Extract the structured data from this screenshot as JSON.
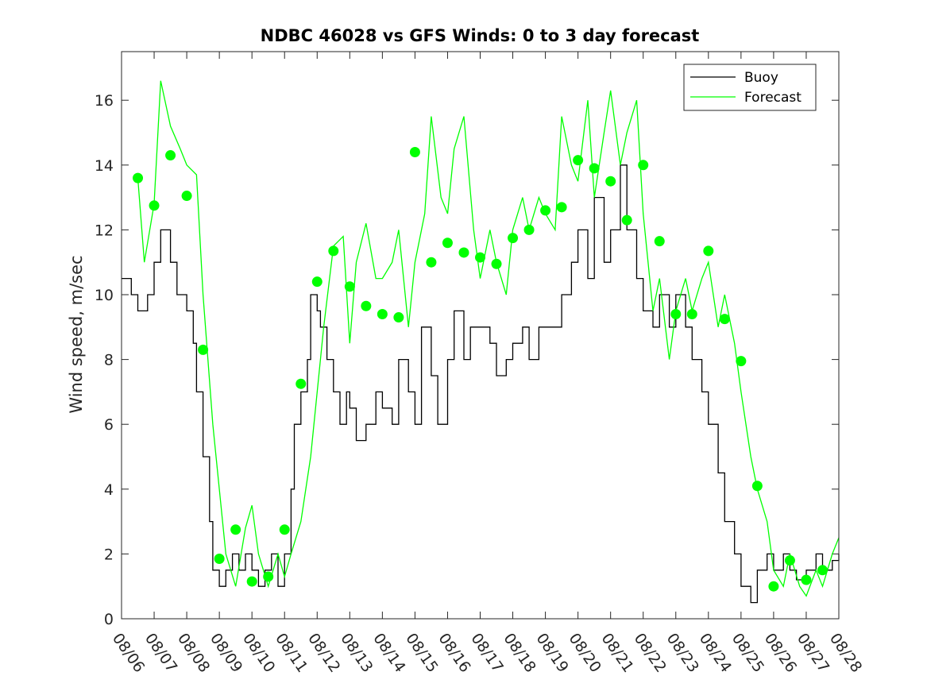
{
  "chart_data": {
    "type": "line",
    "title": "NDBC 46028 vs GFS Winds: 0 to 3 day forecast",
    "ylabel": "Wind speed, m/sec",
    "xlabel": "",
    "ylim": [
      0,
      17.5
    ],
    "yticks": [
      0,
      2,
      4,
      6,
      8,
      10,
      12,
      14,
      16
    ],
    "xlim_days": [
      0,
      22
    ],
    "xticks": [
      "08/06",
      "08/07",
      "08/08",
      "08/09",
      "08/10",
      "08/11",
      "08/12",
      "08/13",
      "08/14",
      "08/15",
      "08/16",
      "08/17",
      "08/18",
      "08/19",
      "08/20",
      "08/21",
      "08/22",
      "08/23",
      "08/24",
      "08/25",
      "08/26",
      "08/27",
      "08/28"
    ],
    "legend_position": "top-right",
    "colors": {
      "buoy": "#000000",
      "forecast": "#00ff00",
      "axis": "#262626"
    },
    "series": [
      {
        "name": "Buoy",
        "style": "step",
        "x": [
          0,
          0.3,
          0.5,
          0.8,
          1.0,
          1.2,
          1.5,
          1.7,
          2.0,
          2.2,
          2.3,
          2.5,
          2.7,
          2.8,
          3.0,
          3.2,
          3.4,
          3.6,
          3.8,
          4.0,
          4.2,
          4.4,
          4.6,
          4.8,
          5.0,
          5.2,
          5.3,
          5.5,
          5.7,
          5.8,
          6.0,
          6.1,
          6.3,
          6.5,
          6.7,
          6.9,
          7.0,
          7.2,
          7.5,
          7.8,
          8.0,
          8.3,
          8.5,
          8.8,
          9.0,
          9.2,
          9.5,
          9.7,
          10.0,
          10.2,
          10.5,
          10.7,
          11.0,
          11.3,
          11.5,
          11.8,
          12.0,
          12.3,
          12.5,
          12.8,
          13.0,
          13.3,
          13.5,
          13.8,
          14.0,
          14.3,
          14.5,
          14.8,
          15.0,
          15.3,
          15.5,
          15.8,
          16.0,
          16.3,
          16.5,
          16.8,
          17.0,
          17.3,
          17.5,
          17.8,
          18.0,
          18.3,
          18.5,
          18.8,
          19.0,
          19.3,
          19.5,
          19.8,
          20.0,
          20.3,
          20.5,
          20.7,
          21.0,
          21.3,
          21.5,
          21.8,
          22.0
        ],
        "values": [
          10.5,
          10,
          9.5,
          10,
          11,
          12,
          11,
          10,
          9.5,
          8.5,
          7,
          5,
          3,
          1.5,
          1,
          1.5,
          2,
          1.5,
          2,
          1.5,
          1,
          1.5,
          2,
          1,
          2,
          4,
          6,
          7,
          8,
          10,
          9.5,
          9,
          8,
          7,
          6,
          7,
          6.5,
          5.5,
          6,
          7,
          6.5,
          6,
          8,
          7,
          6,
          9,
          7.5,
          6,
          8,
          9.5,
          8,
          9,
          9,
          8.5,
          7.5,
          8,
          8.5,
          9,
          8,
          9,
          9,
          9,
          10,
          11,
          12,
          10.5,
          13,
          11,
          12,
          14,
          12,
          10.5,
          9.5,
          9,
          10,
          9,
          10,
          9,
          8,
          7,
          6,
          4.5,
          3,
          2,
          1,
          0.5,
          1.5,
          2,
          1.5,
          2,
          1.5,
          1.2,
          1.5,
          2,
          1.5,
          1.8,
          2
        ]
      },
      {
        "name": "Forecast",
        "style": "line",
        "x": [
          0.5,
          0.7,
          1.0,
          1.2,
          1.5,
          1.8,
          2.0,
          2.3,
          2.5,
          2.8,
          3.0,
          3.2,
          3.5,
          3.8,
          4.0,
          4.2,
          4.5,
          4.8,
          5.0,
          5.2,
          5.5,
          5.8,
          6.0,
          6.2,
          6.5,
          6.8,
          7.0,
          7.2,
          7.5,
          7.8,
          8.0,
          8.3,
          8.5,
          8.8,
          9.0,
          9.3,
          9.5,
          9.8,
          10.0,
          10.2,
          10.5,
          10.8,
          11.0,
          11.3,
          11.5,
          11.8,
          12.0,
          12.3,
          12.5,
          12.8,
          13.0,
          13.3,
          13.5,
          13.8,
          14.0,
          14.3,
          14.5,
          14.8,
          15.0,
          15.3,
          15.5,
          15.8,
          16.0,
          16.3,
          16.5,
          16.8,
          17.0,
          17.3,
          17.5,
          17.8,
          18.0,
          18.3,
          18.5,
          18.8,
          19.0,
          19.3,
          19.5,
          19.8,
          20.0,
          20.3,
          20.5,
          20.8,
          21.0,
          21.3,
          21.5,
          21.8,
          22.0
        ],
        "values": [
          13.6,
          11,
          12.8,
          16.6,
          15.2,
          14.5,
          14,
          13.7,
          10,
          6,
          4,
          2,
          1,
          2.8,
          3.5,
          2,
          1,
          2,
          1.3,
          2,
          3,
          5,
          7,
          9,
          11.5,
          11.8,
          8.5,
          11,
          12.2,
          10.5,
          10.5,
          11,
          12,
          9,
          11,
          12.5,
          15.5,
          13,
          12.5,
          14.5,
          15.5,
          12,
          10.5,
          12,
          11,
          10,
          12,
          13,
          12,
          13,
          12.5,
          12,
          15.5,
          14,
          13.5,
          16,
          13,
          15,
          16.3,
          14,
          15,
          16,
          12.5,
          9.5,
          10.5,
          8,
          9.5,
          10.5,
          9.5,
          10.5,
          11,
          9,
          10,
          8.5,
          7,
          5,
          4,
          3,
          1.5,
          1,
          2,
          1,
          0.7,
          1.5,
          1,
          2,
          2.5
        ]
      }
    ],
    "markers": {
      "series": "Forecast",
      "x": [
        0.5,
        1.0,
        1.5,
        2.0,
        2.5,
        3.0,
        3.5,
        4.0,
        4.5,
        5.0,
        5.5,
        6.0,
        6.5,
        7.0,
        7.5,
        8.0,
        8.5,
        9.0,
        9.5,
        10.0,
        10.5,
        11.0,
        11.5,
        12.0,
        12.5,
        13.0,
        13.5,
        14.0,
        14.5,
        15.0,
        15.5,
        16.0,
        16.5,
        17.0,
        17.5,
        18.0,
        18.5,
        19.0,
        19.5,
        20.0,
        20.5,
        21.0,
        21.5
      ],
      "values": [
        13.6,
        12.75,
        14.3,
        13.05,
        8.3,
        1.85,
        2.75,
        1.15,
        1.3,
        2.75,
        7.25,
        10.4,
        11.35,
        10.25,
        9.65,
        9.4,
        9.3,
        14.4,
        11.0,
        11.6,
        11.3,
        11.15,
        10.95,
        11.75,
        12.0,
        12.6,
        12.7,
        14.15,
        13.9,
        13.5,
        12.3,
        14.0,
        11.65,
        9.4,
        9.4,
        11.35,
        9.25,
        7.95,
        4.1,
        1.0,
        1.8,
        1.2,
        1.5
      ]
    }
  }
}
